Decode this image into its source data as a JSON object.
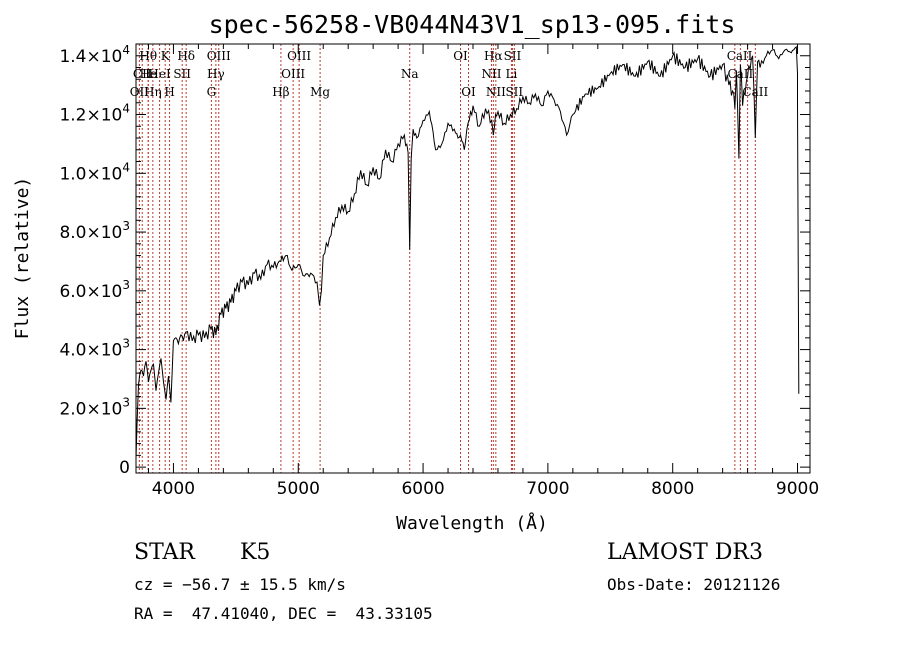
{
  "chart_data": {
    "type": "line",
    "title": "spec-56258-VB044N43V1_sp13-095.fits",
    "xlabel": "Wavelength (Å)",
    "ylabel": "Flux (relative)",
    "xlim": [
      3700,
      9100
    ],
    "ylim": [
      -200,
      14400
    ],
    "xticks": [
      4000,
      5000,
      6000,
      7000,
      8000,
      9000
    ],
    "xtick_labels": [
      "4000",
      "5000",
      "6000",
      "7000",
      "8000",
      "9000"
    ],
    "yticks": [
      0,
      2000,
      4000,
      6000,
      8000,
      10000,
      12000,
      14000
    ],
    "ytick_labels": [
      {
        "mant": "0",
        "exp": ""
      },
      {
        "mant": "2.0×10",
        "exp": "3"
      },
      {
        "mant": "4.0×10",
        "exp": "3"
      },
      {
        "mant": "6.0×10",
        "exp": "3"
      },
      {
        "mant": "8.0×10",
        "exp": "3"
      },
      {
        "mant": "1.0×10",
        "exp": "4"
      },
      {
        "mant": "1.2×10",
        "exp": "4"
      },
      {
        "mant": "1.4×10",
        "exp": "4"
      }
    ],
    "series": [
      {
        "name": "flux",
        "x": [
          3700,
          3720,
          3740,
          3760,
          3780,
          3800,
          3820,
          3840,
          3860,
          3880,
          3900,
          3920,
          3940,
          3960,
          3980,
          4000,
          4020,
          4040,
          4060,
          4080,
          4100,
          4150,
          4200,
          4250,
          4300,
          4340,
          4380,
          4420,
          4460,
          4500,
          4550,
          4600,
          4650,
          4700,
          4750,
          4800,
          4860,
          4900,
          4950,
          5000,
          5050,
          5100,
          5150,
          5170,
          5185,
          5200,
          5250,
          5300,
          5350,
          5400,
          5450,
          5500,
          5550,
          5600,
          5650,
          5700,
          5750,
          5800,
          5850,
          5880,
          5893,
          5905,
          5920,
          5950,
          6000,
          6050,
          6080,
          6100,
          6150,
          6200,
          6250,
          6280,
          6300,
          6330,
          6360,
          6400,
          6450,
          6500,
          6550,
          6563,
          6580,
          6600,
          6650,
          6700,
          6750,
          6800,
          6850,
          6900,
          6950,
          7000,
          7050,
          7100,
          7150,
          7200,
          7300,
          7400,
          7500,
          7600,
          7700,
          7800,
          7900,
          8000,
          8100,
          8200,
          8300,
          8400,
          8450,
          8480,
          8498,
          8510,
          8530,
          8542,
          8560,
          8600,
          8640,
          8662,
          8680,
          8700,
          8750,
          8800,
          8850,
          8900,
          8950,
          8990,
          9000,
          9000,
          9010
        ],
        "y": [
          300,
          2800,
          3300,
          3100,
          3600,
          2900,
          3300,
          3500,
          2600,
          3200,
          3700,
          2900,
          2300,
          3100,
          2200,
          4300,
          4400,
          4200,
          4500,
          4300,
          4600,
          4300,
          4500,
          4400,
          4700,
          4500,
          5200,
          5400,
          5600,
          6000,
          6300,
          6200,
          6600,
          6400,
          6900,
          6800,
          7000,
          7200,
          6700,
          6900,
          6500,
          6600,
          6300,
          5500,
          6000,
          7200,
          7800,
          8500,
          8900,
          8700,
          9300,
          10100,
          9600,
          10200,
          9800,
          10800,
          10400,
          11000,
          11300,
          10700,
          7400,
          10500,
          11500,
          11200,
          11800,
          12100,
          11400,
          10800,
          11000,
          11700,
          11500,
          11200,
          11300,
          10800,
          11700,
          12300,
          11600,
          12200,
          11800,
          11300,
          12000,
          12100,
          11700,
          12000,
          12200,
          12600,
          12400,
          12700,
          12300,
          12800,
          12500,
          12100,
          11300,
          12000,
          12700,
          12900,
          13400,
          13700,
          13300,
          13800,
          13300,
          14000,
          13600,
          13900,
          13300,
          13700,
          13000,
          12800,
          12200,
          13500,
          10500,
          13700,
          12300,
          13300,
          14000,
          11200,
          13800,
          13600,
          14000,
          14200,
          13900,
          14200,
          14100,
          14300,
          13400,
          12400,
          2500
        ]
      }
    ],
    "lines": [
      {
        "wl": 3727,
        "label": "OII",
        "row": 2
      },
      {
        "wl": 3750,
        "label": "CII",
        "row": 1
      },
      {
        "wl": 3798,
        "label": "Hθ",
        "row": 0
      },
      {
        "wl": 3798,
        "label": "He",
        "row": 1
      },
      {
        "wl": 3835,
        "label": "Hη",
        "row": 2
      },
      {
        "wl": 3889,
        "label": "HeI",
        "row": 1
      },
      {
        "wl": 3934,
        "label": "K",
        "row": 0
      },
      {
        "wl": 3969,
        "label": "H",
        "row": 2
      },
      {
        "wl": 4070,
        "label": "SII",
        "row": 1
      },
      {
        "wl": 4102,
        "label": "Hδ",
        "row": 0
      },
      {
        "wl": 4304,
        "label": "G",
        "row": 2
      },
      {
        "wl": 4340,
        "label": "Hγ",
        "row": 1
      },
      {
        "wl": 4363,
        "label": "OIII",
        "row": 0
      },
      {
        "wl": 4861,
        "label": "Hβ",
        "row": 2
      },
      {
        "wl": 4959,
        "label": "OIII",
        "row": 1
      },
      {
        "wl": 5007,
        "label": "OIII",
        "row": 0
      },
      {
        "wl": 5175,
        "label": "Mg",
        "row": 2
      },
      {
        "wl": 5893,
        "label": "Na",
        "row": 1
      },
      {
        "wl": 6300,
        "label": "OI",
        "row": 0
      },
      {
        "wl": 6364,
        "label": "OI",
        "row": 2
      },
      {
        "wl": 6548,
        "label": "NII",
        "row": 1
      },
      {
        "wl": 6563,
        "label": "Hα",
        "row": 0
      },
      {
        "wl": 6583,
        "label": "NII",
        "row": 2
      },
      {
        "wl": 6708,
        "label": "Li",
        "row": 1
      },
      {
        "wl": 6716,
        "label": "SII",
        "row": 0
      },
      {
        "wl": 6731,
        "label": "SII",
        "row": 2
      },
      {
        "wl": 8498,
        "label": "Ca",
        "row": 0
      },
      {
        "wl": 8542,
        "label": "CaII",
        "row": 1
      },
      {
        "wl": 8662,
        "label": "CaII",
        "row": 2
      },
      {
        "wl": 8600,
        "label": "II",
        "row": 0
      }
    ]
  },
  "info": {
    "object_class": "STAR",
    "subclass": "K5",
    "survey": "LAMOST DR3",
    "cz_line": "cz = −56.7 ± 15.5 km/s",
    "obs_date_line": "Obs-Date: 20121126",
    "radec_line": "RA =  47.41040, DEC =  43.33105"
  }
}
